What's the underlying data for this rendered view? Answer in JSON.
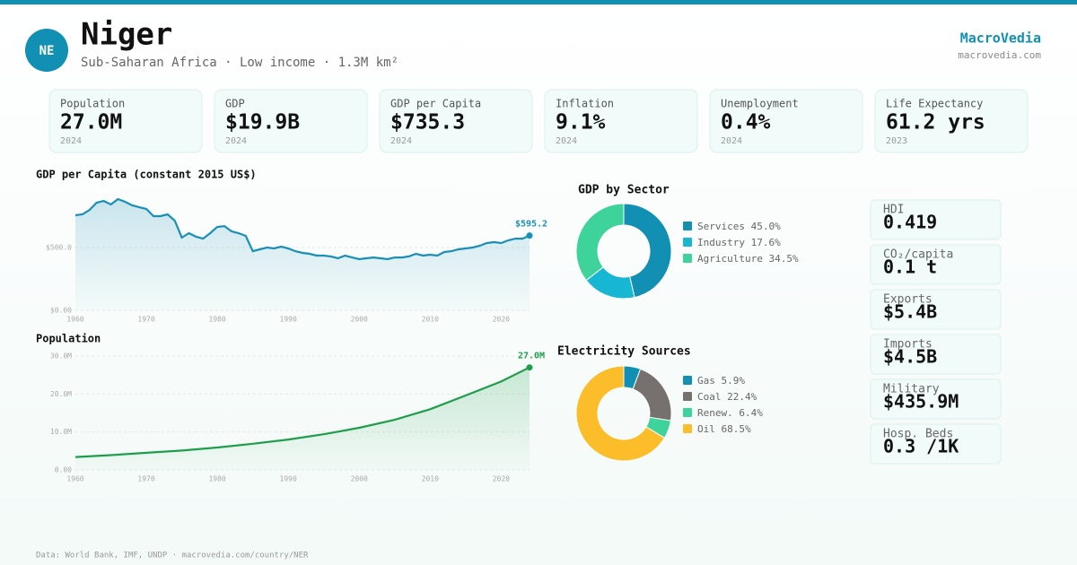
{
  "header": {
    "badge": "NE",
    "title": "Niger",
    "subtitle": "Sub-Saharan Africa · Low income · 1.3M km²",
    "brand": "MacroVedia",
    "url": "macrovedia.com"
  },
  "kpis": [
    {
      "label": "Population",
      "value": "27.0M",
      "year": "2024"
    },
    {
      "label": "GDP",
      "value": "$19.9B",
      "year": "2024"
    },
    {
      "label": "GDP per Capita",
      "value": "$735.3",
      "year": "2024"
    },
    {
      "label": "Inflation",
      "value": "9.1%",
      "year": "2024"
    },
    {
      "label": "Unemployment",
      "value": "0.4%",
      "year": "2024"
    },
    {
      "label": "Life Expectancy",
      "value": "61.2 yrs",
      "year": "2023"
    }
  ],
  "chart_data": [
    {
      "type": "line",
      "title": "GDP per Capita (constant 2015 US$)",
      "color": "#1a8fb5",
      "x": [
        1960,
        1961,
        1962,
        1963,
        1964,
        1965,
        1966,
        1967,
        1968,
        1969,
        1970,
        1971,
        1972,
        1973,
        1974,
        1975,
        1976,
        1977,
        1978,
        1979,
        1980,
        1981,
        1982,
        1983,
        1984,
        1985,
        1986,
        1987,
        1988,
        1989,
        1990,
        1991,
        1992,
        1993,
        1994,
        1995,
        1996,
        1997,
        1998,
        1999,
        2000,
        2001,
        2002,
        2003,
        2004,
        2005,
        2006,
        2007,
        2008,
        2009,
        2010,
        2011,
        2012,
        2013,
        2014,
        2015,
        2016,
        2017,
        2018,
        2019,
        2020,
        2021,
        2022,
        2023,
        2024
      ],
      "values": [
        757,
        764,
        800,
        857,
        871,
        843,
        886,
        864,
        836,
        821,
        807,
        750,
        750,
        764,
        714,
        579,
        614,
        586,
        571,
        614,
        664,
        671,
        629,
        614,
        593,
        471,
        486,
        500,
        493,
        507,
        493,
        471,
        457,
        450,
        436,
        436,
        429,
        414,
        436,
        421,
        407,
        414,
        421,
        414,
        407,
        421,
        421,
        429,
        450,
        436,
        443,
        436,
        464,
        471,
        486,
        493,
        500,
        514,
        536,
        543,
        536,
        557,
        571,
        571,
        595.2
      ],
      "value_labels": [
        null,
        null,
        null,
        null,
        null,
        null,
        null,
        null,
        null,
        null,
        null,
        null,
        null,
        null,
        null,
        null,
        null,
        null,
        null,
        null,
        null,
        null,
        null,
        null,
        null,
        null,
        null,
        null,
        null,
        null,
        null,
        null,
        null,
        null,
        null,
        null,
        null,
        null,
        null,
        null,
        null,
        null,
        null,
        null,
        null,
        null,
        null,
        null,
        null,
        null,
        null,
        null,
        null,
        null,
        null,
        null,
        null,
        null,
        null,
        null,
        null,
        null,
        null,
        null,
        "$595.2"
      ],
      "xlim": [
        1960,
        2024
      ],
      "xticks": [
        1960,
        1970,
        1980,
        1990,
        2000,
        2010,
        2020
      ],
      "ylim": [
        0,
        950
      ],
      "yticks": [
        {
          "value": 0,
          "label": "$0.00"
        },
        {
          "value": 500,
          "label": "$500.0"
        }
      ],
      "grid": true
    },
    {
      "type": "line",
      "title": "Population",
      "color": "#1e9e4a",
      "x": [
        1960,
        1965,
        1970,
        1975,
        1980,
        1985,
        1990,
        1995,
        2000,
        2005,
        2010,
        2015,
        2020,
        2024
      ],
      "values": [
        3.4,
        3.9,
        4.5,
        5.1,
        5.9,
        6.9,
        8.0,
        9.4,
        11.1,
        13.2,
        16.0,
        19.6,
        23.3,
        27.0
      ],
      "value_labels": [
        null,
        null,
        null,
        null,
        null,
        null,
        null,
        null,
        null,
        null,
        null,
        null,
        null,
        "27.0M"
      ],
      "xlim": [
        1960,
        2024
      ],
      "xticks": [
        1960,
        1970,
        1980,
        1990,
        2000,
        2010,
        2020
      ],
      "ylim": [
        0,
        30
      ],
      "yticks": [
        {
          "value": 0,
          "label": "0.00"
        },
        {
          "value": 10,
          "label": "10.0M"
        },
        {
          "value": 20,
          "label": "20.0M"
        },
        {
          "value": 30,
          "label": "30.0M"
        }
      ],
      "grid": true
    },
    {
      "type": "donut",
      "title": "GDP by Sector",
      "categories": [
        "Services",
        "Industry",
        "Agriculture"
      ],
      "values": [
        45.0,
        17.6,
        34.5
      ],
      "value_labels": [
        "45.0%",
        "17.6%",
        "34.5%"
      ],
      "colors": [
        "#1190b4",
        "#17b6d2",
        "#3dd39a"
      ]
    },
    {
      "type": "donut",
      "title": "Electricity Sources",
      "categories": [
        "Gas",
        "Coal",
        "Renew.",
        "Oil"
      ],
      "values": [
        5.9,
        22.4,
        6.4,
        68.5
      ],
      "value_labels": [
        "5.9%",
        "22.4%",
        "6.4%",
        "68.5%"
      ],
      "colors": [
        "#1190b4",
        "#76716f",
        "#3dd39a",
        "#fbbd2a"
      ]
    }
  ],
  "stats": [
    {
      "label": "HDI",
      "value": "0.419"
    },
    {
      "label": "CO₂/capita",
      "value": "0.1 t"
    },
    {
      "label": "Exports",
      "value": "$5.4B"
    },
    {
      "label": "Imports",
      "value": "$4.5B"
    },
    {
      "label": "Military",
      "value": "$435.9M"
    },
    {
      "label": "Hosp. Beds",
      "value": "0.3 /1K"
    }
  ],
  "footer": "Data: World Bank, IMF, UNDP · macrovedia.com/country/NER"
}
